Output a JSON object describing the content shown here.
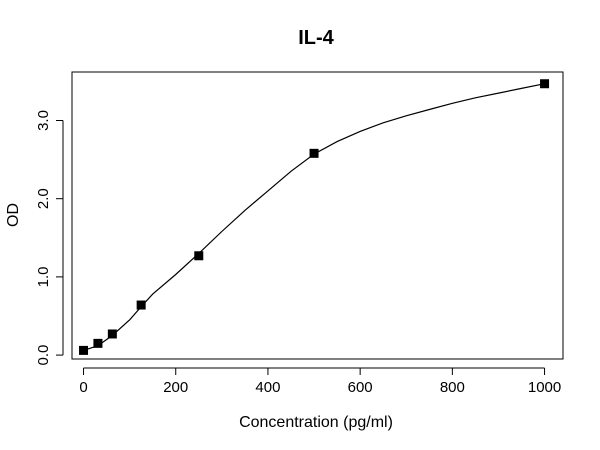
{
  "chart_data": {
    "type": "scatter",
    "title": "IL-4",
    "xlabel": "Concentration (pg/ml)",
    "ylabel": "OD",
    "xlim": [
      -25,
      1040
    ],
    "ylim": [
      -0.05,
      3.62
    ],
    "xticks": [
      {
        "value": 0,
        "label": "0"
      },
      {
        "value": 200,
        "label": "200"
      },
      {
        "value": 400,
        "label": "400"
      },
      {
        "value": 600,
        "label": "600"
      },
      {
        "value": 800,
        "label": "800"
      },
      {
        "value": 1000,
        "label": "1000"
      }
    ],
    "yticks": [
      {
        "value": 0,
        "label": "0.0"
      },
      {
        "value": 1,
        "label": "1.0"
      },
      {
        "value": 2,
        "label": "2.0"
      },
      {
        "value": 3,
        "label": "3.0"
      }
    ],
    "grid": false,
    "legend": "none",
    "series": [
      {
        "kind": "points",
        "marker": "square",
        "x": [
          0,
          31.25,
          62.5,
          125,
          250,
          500,
          1000
        ],
        "y": [
          0.06,
          0.15,
          0.27,
          0.64,
          1.27,
          2.58,
          3.47
        ]
      }
    ],
    "fit_curve": {
      "x": [
        0,
        31.25,
        62.5,
        100,
        125,
        150,
        200,
        250,
        300,
        350,
        400,
        450,
        500,
        550,
        600,
        650,
        700,
        750,
        800,
        850,
        900,
        950,
        1000
      ],
      "y": [
        0.06,
        0.12,
        0.25,
        0.45,
        0.62,
        0.78,
        1.03,
        1.3,
        1.58,
        1.85,
        2.1,
        2.35,
        2.57,
        2.73,
        2.86,
        2.97,
        3.06,
        3.14,
        3.22,
        3.29,
        3.35,
        3.41,
        3.47
      ]
    },
    "colors": {
      "points": "#000000",
      "curve": "#000000",
      "axes": "#000000"
    }
  }
}
